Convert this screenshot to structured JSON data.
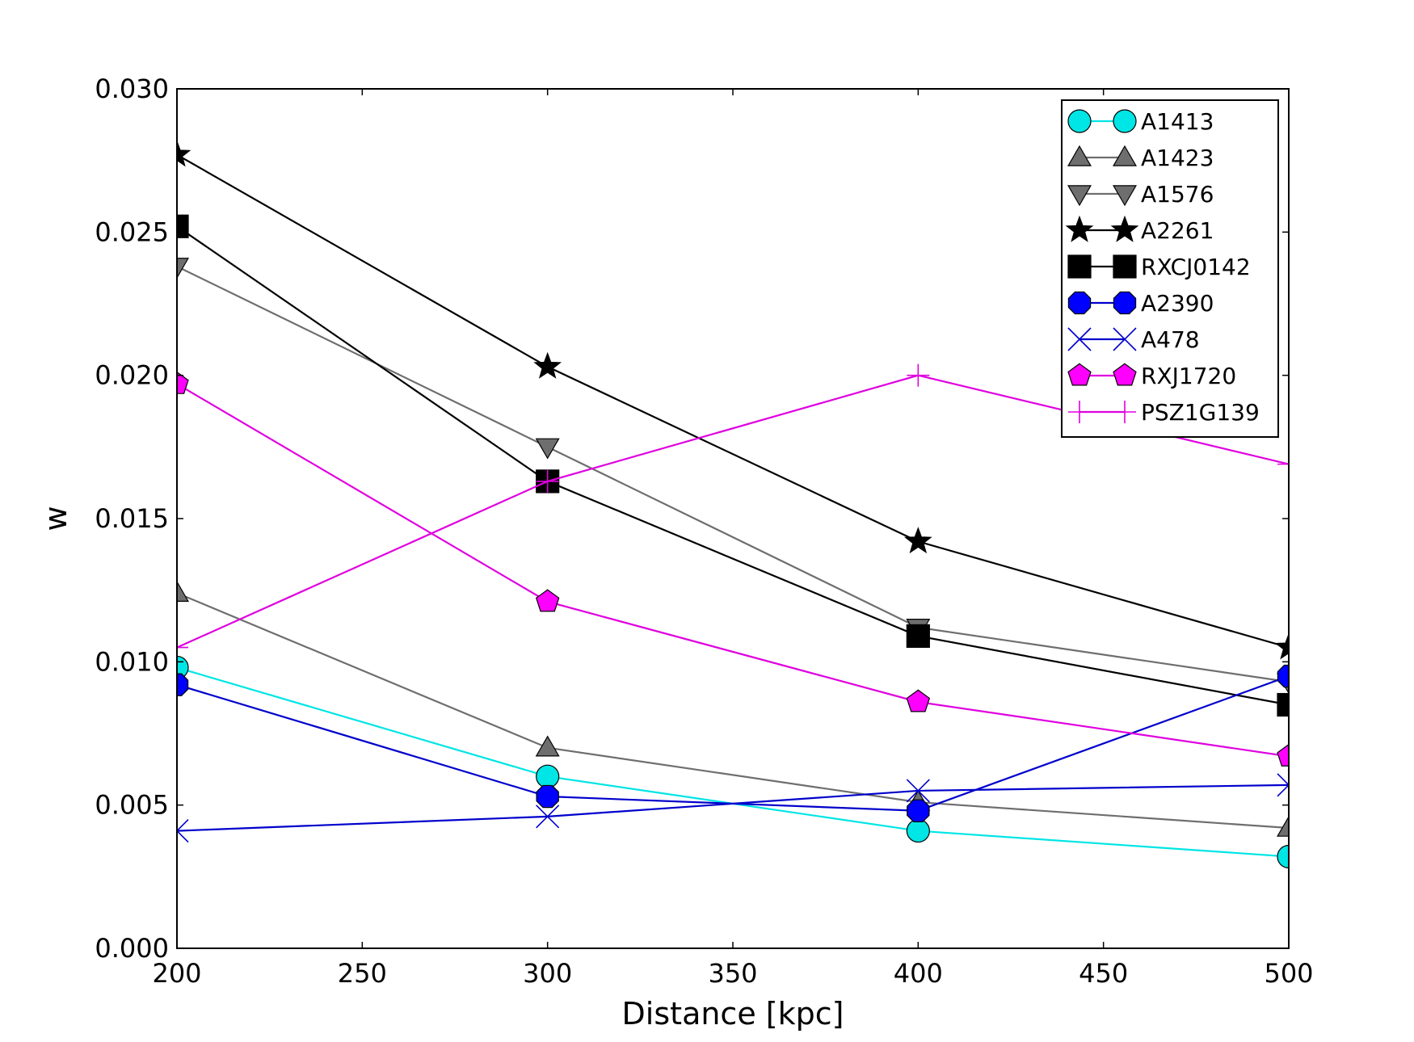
{
  "chart_data": {
    "type": "line",
    "title": "",
    "xlabel": "Distance [kpc]",
    "ylabel": "w",
    "xlim": [
      200,
      500
    ],
    "ylim": [
      0.0,
      0.03
    ],
    "x": [
      200,
      300,
      400,
      500
    ],
    "xticks": [
      200,
      250,
      300,
      350,
      400,
      450,
      500
    ],
    "xtick_labels": [
      "200",
      "250",
      "300",
      "350",
      "400",
      "450",
      "500"
    ],
    "yticks": [
      0.0,
      0.005,
      0.01,
      0.015,
      0.02,
      0.025,
      0.03
    ],
    "ytick_labels": [
      "0.000",
      "0.005",
      "0.010",
      "0.015",
      "0.020",
      "0.025",
      "0.030"
    ],
    "grid": false,
    "legend_position": "top-right",
    "series": [
      {
        "name": "A1413",
        "marker": "circle",
        "color": "#00e5e5",
        "values": [
          0.0098,
          0.006,
          0.0041,
          0.0032
        ]
      },
      {
        "name": "A1423",
        "marker": "triangle-up",
        "color": "#6e6e6e",
        "values": [
          0.0124,
          0.007,
          0.0051,
          0.0042
        ]
      },
      {
        "name": "A1576",
        "marker": "triangle-down",
        "color": "#6e6e6e",
        "values": [
          0.0238,
          0.0175,
          0.0112,
          0.0093
        ]
      },
      {
        "name": "A2261",
        "marker": "star",
        "color": "#000000",
        "values": [
          0.0277,
          0.0203,
          0.0142,
          0.0105
        ]
      },
      {
        "name": "RXCJ0142",
        "marker": "square",
        "color": "#000000",
        "values": [
          0.0252,
          0.0163,
          0.0109,
          0.0085
        ]
      },
      {
        "name": "A2390",
        "marker": "octagon",
        "color": "#0000ff",
        "line_color": "#0000cc",
        "values": [
          0.0092,
          0.0053,
          0.0048,
          0.0095
        ]
      },
      {
        "name": "A478",
        "marker": "x",
        "color": "#0000cc",
        "values": [
          0.0041,
          0.0046,
          0.0055,
          0.0057
        ]
      },
      {
        "name": "RXJ1720",
        "marker": "pentagon",
        "color": "#ff00ff",
        "line_color": "#e000e0",
        "values": [
          0.0197,
          0.0121,
          0.0086,
          0.0067
        ]
      },
      {
        "name": "PSZ1G139",
        "marker": "plus",
        "color": "#e000e0",
        "values": [
          0.0105,
          0.0163,
          0.02,
          0.0169
        ]
      }
    ]
  }
}
